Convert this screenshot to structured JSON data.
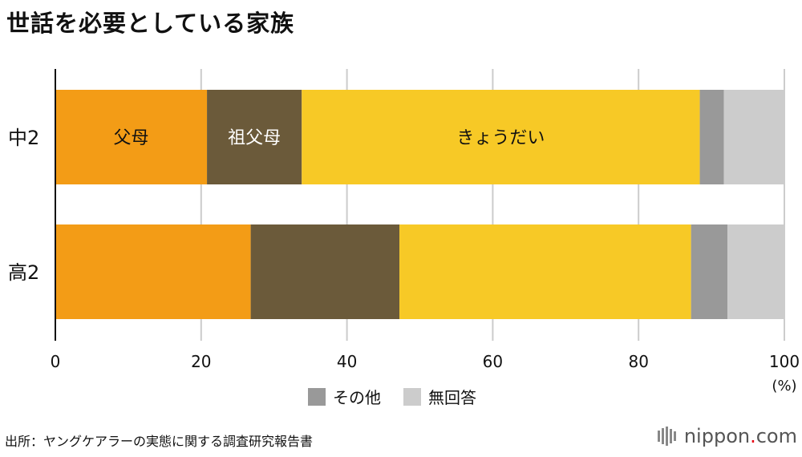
{
  "title": "世話を必要としている家族",
  "chart_data": {
    "type": "bar",
    "orientation": "horizontal",
    "stacked": true,
    "categories": [
      "中2",
      "高2"
    ],
    "series": [
      {
        "name": "父母",
        "color": "#f39c16",
        "values": [
          20.8,
          26.8
        ]
      },
      {
        "name": "祖父母",
        "color": "#6b5a3a",
        "values": [
          13.0,
          20.4
        ]
      },
      {
        "name": "きょうだい",
        "color": "#f7c926",
        "values": [
          54.6,
          40.0
        ]
      },
      {
        "name": "その他",
        "color": "#999999",
        "values": [
          3.3,
          5.0
        ]
      },
      {
        "name": "無回答",
        "color": "#cccccc",
        "values": [
          8.3,
          7.8
        ]
      }
    ],
    "inline_labels": [
      "父母",
      "祖父母",
      "きょうだい"
    ],
    "x_ticks": [
      "0",
      "20",
      "40",
      "60",
      "80",
      "100"
    ],
    "xlim": [
      0,
      100
    ],
    "x_unit": "(%)",
    "grid": true,
    "legend": {
      "position": "bottom",
      "items": [
        "その他",
        "無回答"
      ]
    }
  },
  "source": "出所：ヤングケアラーの実態に関する調査研究報告書",
  "brand": {
    "name": "nippon",
    "tld": ".com"
  }
}
